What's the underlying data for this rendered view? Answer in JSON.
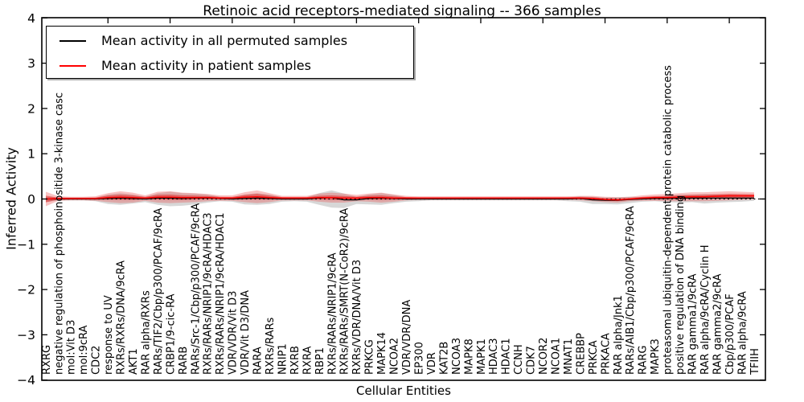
{
  "figure": {
    "background": "#ffffff"
  },
  "chart_data": {
    "type": "line",
    "title": "Retinoic acid receptors-mediated signaling -- 366 samples",
    "xlabel": "Cellular Entities",
    "ylabel": "Inferred Activity",
    "ylim": [
      -4,
      4
    ],
    "yticks": [
      "−4",
      "−3",
      "−2",
      "−1",
      "0",
      "1",
      "2",
      "3",
      "4"
    ],
    "grid": false,
    "legend_position": "upper left",
    "legend": [
      {
        "label": "Mean activity in all permuted samples",
        "color": "#000000"
      },
      {
        "label": "Mean activity in patient samples",
        "color": "#ff0000"
      }
    ],
    "zero_line": {
      "y": 0,
      "style": "dotted",
      "color": "#000000"
    },
    "categories": [
      "RXRG",
      "negative regulation of phosphoinositide 3-kinase casc",
      "mol:Vit D3",
      "mol:9cRA",
      "CDC2",
      "response to UV",
      "RXRs/RXRs/DNA/9cRA",
      "AKT1",
      "RAR alpha/RXRs",
      "RARs/TIF2/Cbp/p300/PCAF/9cRA",
      "CRBP1/9-cic-RA",
      "RARB",
      "RARs/Src-1/Cbp/p300/PCAF/9cRA",
      "RXRs/RARs/NRIP1/9cRA/HDAC3",
      "RXRs/RARs/NRIP1/9cRA/HDAC1",
      "VDR/VDR/Vit D3",
      "VDR/Vit D3/DNA",
      "RARA",
      "RXRs/RARs",
      "NRIP1",
      "RXRB",
      "RXRA",
      "RBP1",
      "RXRs/RARs/NRIP1/9cRA",
      "RXRs/RARs/SMRT(N-CoR2)/9cRA",
      "RXRs/VDR/DNA/Vit D3",
      "PRKCG",
      "MAPK14",
      "NCOA2",
      "VDR/VDR/DNA",
      "EP300",
      "VDR",
      "KAT2B",
      "NCOA3",
      "MAPK8",
      "MAPK1",
      "HDAC3",
      "HDAC1",
      "CCNH",
      "CDK7",
      "NCOR2",
      "NCOA1",
      "MNAT1",
      "CREBBP",
      "PRKCA",
      "PRKACA",
      "RAR alpha/Jnk1",
      "RARs/AIB1/Cbp/p300/PCAF/9cRA",
      "RARG",
      "MAPK3",
      "proteasomal ubiquitin-dependent protein catabolic process",
      "positive regulation of DNA binding",
      "RAR gamma1/9cRA",
      "RAR alpha/9cRA/Cyclin H",
      "RAR gamma2/9cRA",
      "Cbp/p300/PCAF",
      "RAR alpha/9cRA",
      "TFIIH"
    ],
    "series": [
      {
        "name": "Mean activity in all permuted samples",
        "color": "#000000",
        "style": "solid",
        "values": [
          0.0,
          0.0,
          0.0,
          0.0,
          0.0,
          0.01,
          0.02,
          0.01,
          0.0,
          0.02,
          0.02,
          0.01,
          0.02,
          0.02,
          0.01,
          0.0,
          0.01,
          0.02,
          0.01,
          0.0,
          0.0,
          0.0,
          0.02,
          0.03,
          -0.02,
          -0.02,
          0.01,
          0.02,
          0.01,
          0.0,
          0.0,
          0.0,
          0.0,
          0.0,
          0.0,
          0.0,
          0.0,
          0.0,
          0.0,
          0.0,
          0.0,
          0.0,
          0.0,
          0.01,
          -0.02,
          -0.03,
          -0.03,
          -0.01,
          0.0,
          0.01,
          0.01,
          0.02,
          0.02,
          0.02,
          0.02,
          0.02,
          0.02,
          0.02
        ]
      },
      {
        "name": "Mean activity in patient samples",
        "color": "#ff0000",
        "style": "solid",
        "values": [
          0.0,
          0.01,
          0.01,
          0.01,
          0.01,
          0.03,
          0.04,
          0.03,
          0.02,
          0.04,
          0.04,
          0.03,
          0.03,
          0.03,
          0.02,
          0.02,
          0.04,
          0.05,
          0.03,
          0.02,
          0.02,
          0.02,
          0.03,
          0.03,
          0.02,
          0.02,
          0.03,
          0.03,
          0.02,
          0.02,
          0.02,
          0.02,
          0.02,
          0.02,
          0.02,
          0.02,
          0.02,
          0.02,
          0.02,
          0.02,
          0.02,
          0.02,
          0.02,
          0.02,
          0.01,
          -0.01,
          -0.02,
          0.0,
          0.02,
          0.03,
          0.03,
          0.04,
          0.05,
          0.05,
          0.06,
          0.07,
          0.07,
          0.07
        ]
      }
    ],
    "bands": [
      {
        "name": "permuted samples range",
        "color": "#b0b0b0",
        "opacity": 0.5,
        "lo": [
          -0.07,
          -0.03,
          -0.03,
          -0.03,
          -0.05,
          -0.11,
          -0.13,
          -0.1,
          -0.07,
          -0.13,
          -0.16,
          -0.15,
          -0.12,
          -0.08,
          -0.05,
          -0.06,
          -0.12,
          -0.13,
          -0.11,
          -0.06,
          -0.05,
          -0.06,
          -0.13,
          -0.19,
          -0.2,
          -0.11,
          -0.12,
          -0.13,
          -0.09,
          -0.06,
          -0.05,
          -0.03,
          -0.03,
          -0.03,
          -0.03,
          -0.03,
          -0.03,
          -0.03,
          -0.03,
          -0.03,
          -0.03,
          -0.03,
          -0.05,
          -0.06,
          -0.11,
          -0.11,
          -0.12,
          -0.09,
          -0.06,
          -0.05,
          -0.07,
          -0.08,
          -0.07,
          -0.1,
          -0.08,
          -0.07,
          -0.06,
          -0.04
        ],
        "hi": [
          0.05,
          0.03,
          0.03,
          0.03,
          0.03,
          0.1,
          0.13,
          0.1,
          0.05,
          0.13,
          0.16,
          0.13,
          0.12,
          0.1,
          0.05,
          0.04,
          0.1,
          0.13,
          0.1,
          0.04,
          0.03,
          0.04,
          0.13,
          0.19,
          0.12,
          0.05,
          0.1,
          0.13,
          0.09,
          0.04,
          0.03,
          0.03,
          0.03,
          0.03,
          0.03,
          0.03,
          0.03,
          0.03,
          0.03,
          0.03,
          0.03,
          0.03,
          0.03,
          0.06,
          0.05,
          0.03,
          0.04,
          0.05,
          0.04,
          0.05,
          0.07,
          0.1,
          0.09,
          0.11,
          0.1,
          0.09,
          0.08,
          0.06
        ]
      },
      {
        "name": "patient samples range",
        "color": "#e84040",
        "opacity": 0.32,
        "inner_scale": 0.45,
        "inner_opacity": 0.5,
        "lo": [
          -0.16,
          -0.04,
          -0.03,
          -0.03,
          -0.04,
          -0.07,
          -0.09,
          -0.08,
          -0.04,
          -0.08,
          -0.09,
          -0.08,
          -0.07,
          -0.05,
          -0.04,
          -0.04,
          -0.07,
          -0.09,
          -0.07,
          -0.03,
          -0.03,
          -0.03,
          -0.06,
          -0.08,
          -0.08,
          -0.05,
          -0.06,
          -0.08,
          -0.06,
          -0.03,
          -0.02,
          -0.02,
          -0.02,
          -0.02,
          -0.02,
          -0.02,
          -0.02,
          -0.02,
          -0.02,
          -0.02,
          -0.02,
          -0.02,
          -0.02,
          -0.03,
          -0.05,
          -0.07,
          -0.08,
          -0.05,
          -0.04,
          -0.04,
          -0.05,
          -0.05,
          -0.05,
          -0.05,
          -0.04,
          -0.03,
          -0.02,
          -0.01
        ],
        "hi": [
          0.16,
          0.06,
          0.05,
          0.05,
          0.06,
          0.13,
          0.17,
          0.14,
          0.08,
          0.16,
          0.17,
          0.14,
          0.13,
          0.11,
          0.08,
          0.08,
          0.15,
          0.19,
          0.13,
          0.07,
          0.07,
          0.07,
          0.12,
          0.14,
          0.12,
          0.09,
          0.12,
          0.14,
          0.1,
          0.07,
          0.06,
          0.06,
          0.06,
          0.06,
          0.06,
          0.06,
          0.06,
          0.06,
          0.06,
          0.06,
          0.06,
          0.06,
          0.06,
          0.07,
          0.07,
          0.05,
          0.04,
          0.05,
          0.08,
          0.1,
          0.11,
          0.13,
          0.15,
          0.15,
          0.16,
          0.17,
          0.16,
          0.15
        ]
      }
    ],
    "colors": {
      "axis": "#000000",
      "tick_labels": "#000000",
      "permuted_line": "#000000",
      "patient_line": "#ff0000",
      "permuted_band": "#b0b0b0",
      "patient_band": "#e84040",
      "patient_band_inner": "#dd2222",
      "zero_line": "#000000",
      "legend_shadow": "#a9a9a9"
    }
  }
}
